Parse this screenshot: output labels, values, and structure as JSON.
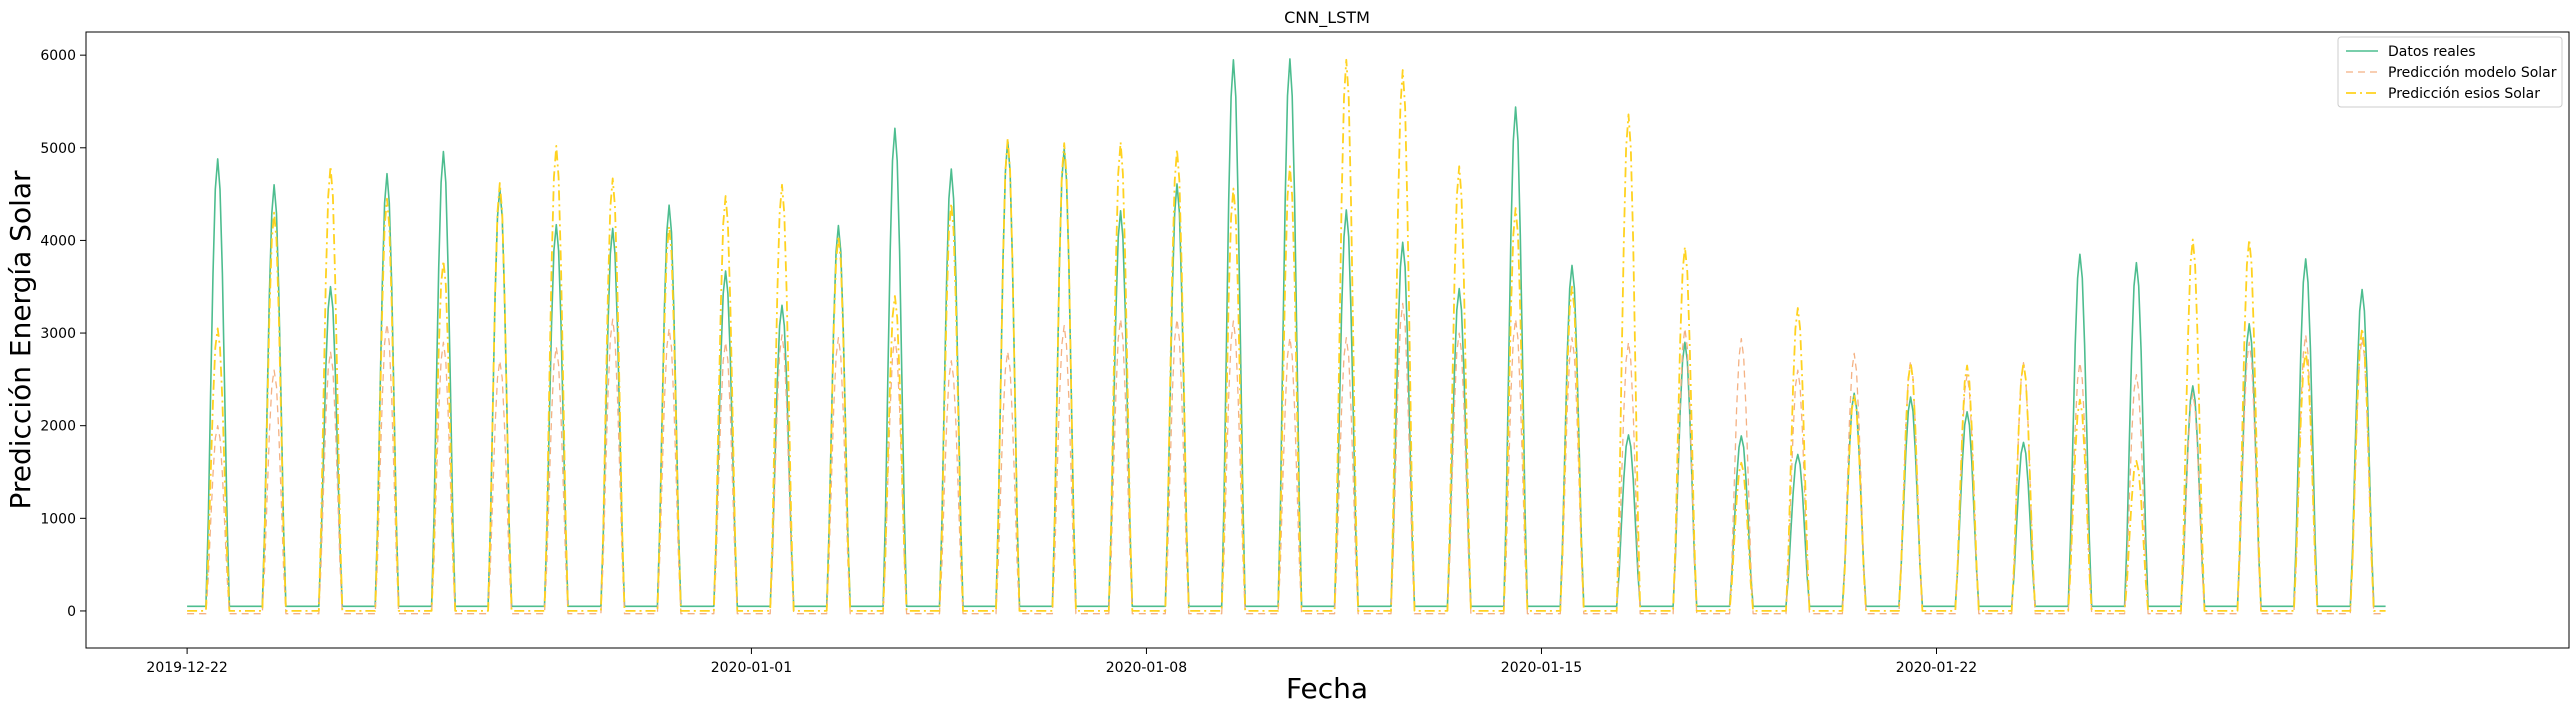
{
  "chart_data": {
    "type": "line",
    "title": "CNN_LSTM",
    "xlabel": "Fecha",
    "ylabel": "Predicción Energía Solar",
    "x_start": "2019-12-22",
    "x_step_hours": 1,
    "xlim": [
      "2019-12-20T05:00",
      "2020-02-02T05:00"
    ],
    "ylim": [
      -400,
      6250
    ],
    "x_ticks": [
      "2019-12-22",
      "2020-01-01",
      "2020-01-08",
      "2020-01-15",
      "2020-01-22"
    ],
    "y_ticks": [
      0,
      1000,
      2000,
      3000,
      4000,
      5000,
      6000
    ],
    "grid": false,
    "legend_position": "top-right",
    "series": [
      {
        "name": "Datos reales",
        "color": "#4dbd8f",
        "style": "solid",
        "night": 50,
        "peaks": [
          4880,
          4600,
          3500,
          4720,
          4960,
          4560,
          4170,
          4130,
          4380,
          3670,
          3300,
          4160,
          5210,
          4770,
          5080,
          4990,
          4320,
          4610,
          5950,
          5960,
          4330,
          3980,
          3480,
          5440,
          3730,
          1900,
          2900,
          1890,
          1690,
          2350,
          2310,
          2150,
          1820,
          3850,
          3760,
          2430,
          3100,
          3800,
          3470
        ]
      },
      {
        "name": "Predicción modelo Solar",
        "color": "#f4b183",
        "style": "dashed",
        "night": -30,
        "peaks": [
          2000,
          2600,
          2800,
          3100,
          2900,
          2700,
          2850,
          3150,
          3050,
          2900,
          2980,
          2950,
          2950,
          2700,
          2800,
          3080,
          3150,
          3150,
          3130,
          2950,
          2950,
          3320,
          3000,
          3150,
          2950,
          2900,
          3050,
          2940,
          2600,
          2780,
          2700,
          2550,
          2680,
          2680,
          2550,
          2350,
          2900,
          2980,
          2950
        ]
      },
      {
        "name": "Predicción esios Solar",
        "color": "#ffd21f",
        "style": "dashdot",
        "night": 0,
        "peaks": [
          3050,
          4300,
          4800,
          4450,
          3780,
          4620,
          5020,
          4670,
          4150,
          4480,
          4600,
          4050,
          3400,
          4400,
          5100,
          5050,
          5060,
          4980,
          4560,
          4800,
          5950,
          5840,
          4800,
          4350,
          3500,
          5360,
          3930,
          1600,
          3270,
          2330,
          2680,
          2650,
          2680,
          2280,
          1620,
          4010,
          4010,
          2800,
          3050
        ]
      }
    ]
  }
}
